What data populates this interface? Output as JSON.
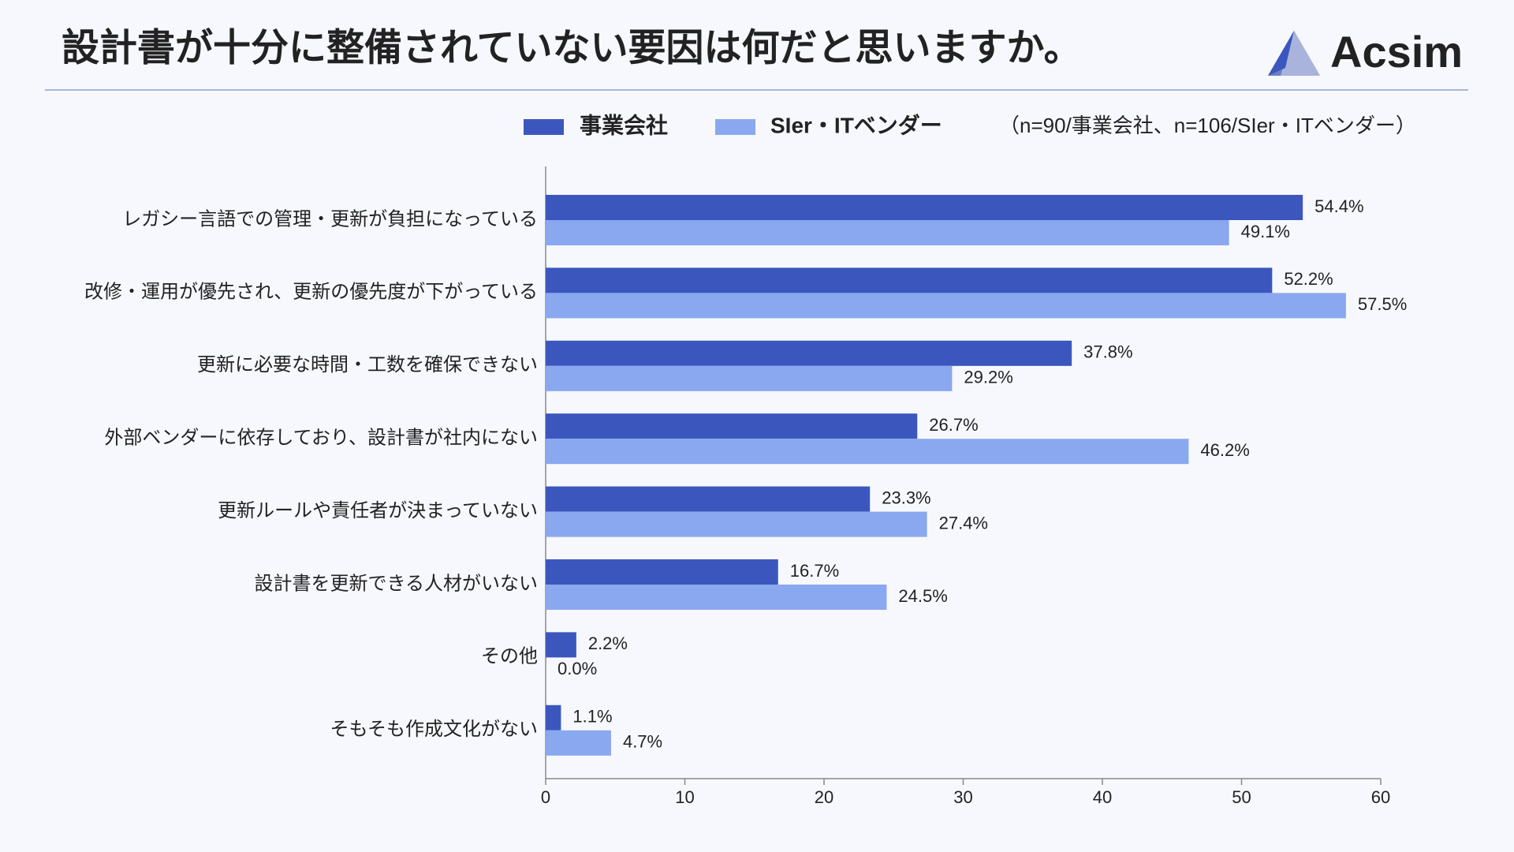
{
  "chart_data": {
    "type": "bar",
    "orientation": "horizontal",
    "title": "設計書が十分に整備されていない要因は何だと思いますか。",
    "logo": "Acsim",
    "note": "（n=90/事業会社、n=106/SIer・ITベンダー）",
    "categories": [
      "レガシー言語での管理・更新が負担になっている",
      "改修・運用が優先され、更新の優先度が下がっている",
      "更新に必要な時間・工数を確保できない",
      "外部ベンダーに依存しており、設計書が社内にない",
      "更新ルールや責任者が決まっていない",
      "設計書を更新できる人材がいない",
      "その他",
      "そもそも作成文化がない"
    ],
    "series": [
      {
        "name": "事業会社",
        "color": "#3b57be",
        "values": [
          54.4,
          52.2,
          37.8,
          26.7,
          23.3,
          16.7,
          2.2,
          1.1
        ],
        "value_labels": [
          "54.4%",
          "52.2%",
          "37.8%",
          "26.7%",
          "23.3%",
          "16.7%",
          "2.2%",
          "1.1%"
        ]
      },
      {
        "name": "SIer・ITベンダー",
        "color": "#8aa8ef",
        "values": [
          49.1,
          57.5,
          29.2,
          46.2,
          27.4,
          24.5,
          0.0,
          4.7
        ],
        "value_labels": [
          "49.1%",
          "57.5%",
          "29.2%",
          "46.2%",
          "27.4%",
          "24.5%",
          "0.0%",
          "4.7%"
        ]
      }
    ],
    "xlim": [
      0,
      60
    ],
    "xticks": [
      0,
      10,
      20,
      30,
      40,
      50,
      60
    ],
    "legend": "top"
  }
}
